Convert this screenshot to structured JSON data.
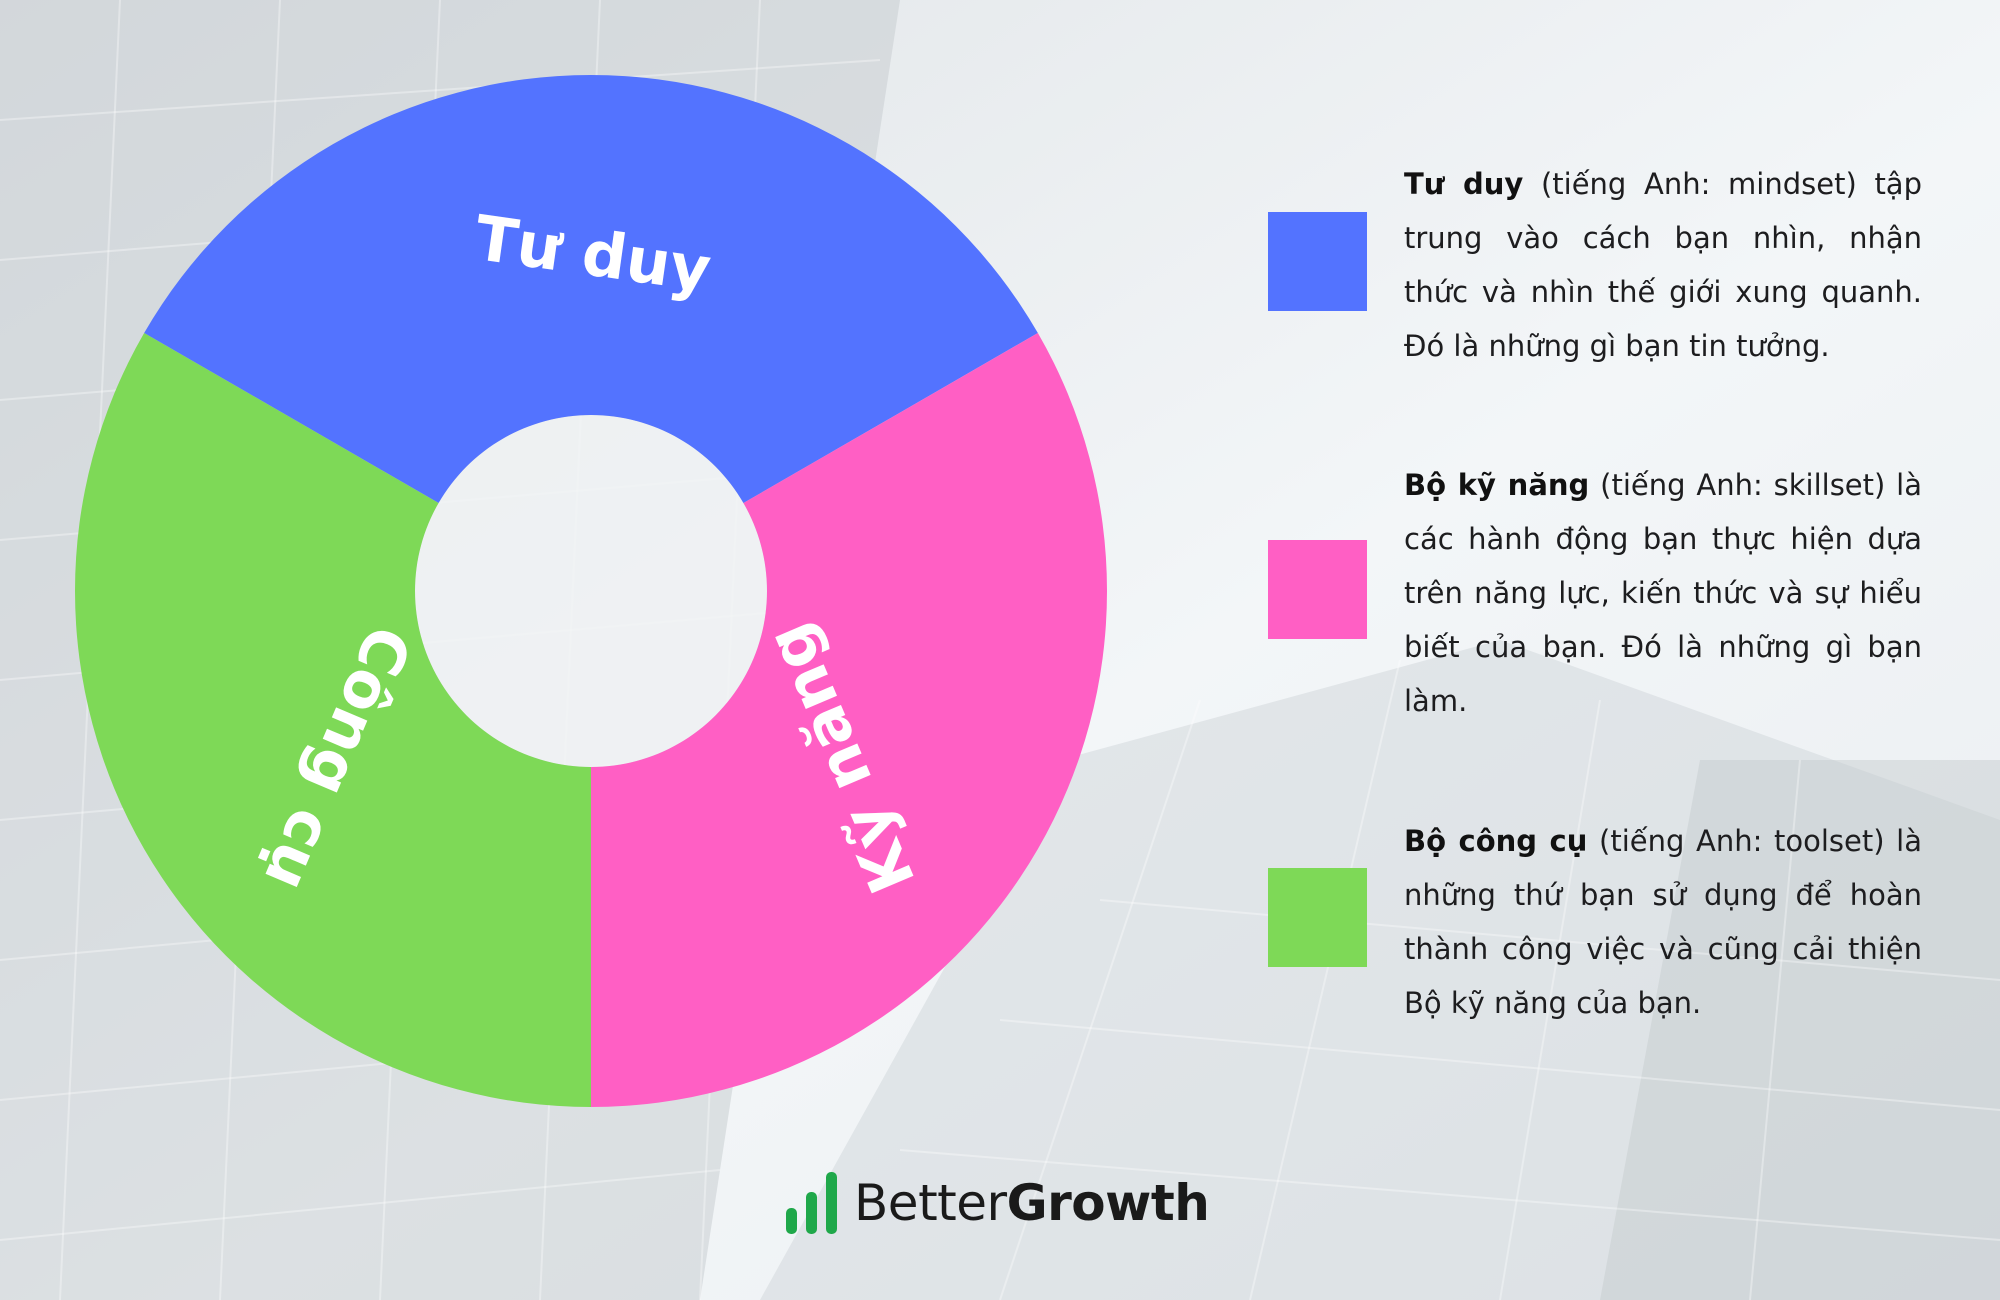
{
  "colors": {
    "mindset": "#5373ff",
    "skillset": "#ff5fc4",
    "toolset": "#7ed957",
    "brand_icon": "#1fa84a"
  },
  "diagram": {
    "segments": [
      {
        "key": "mindset",
        "label": "Tư duy"
      },
      {
        "key": "skillset",
        "label": "Kỹ năng"
      },
      {
        "key": "toolset",
        "label": "Công cụ"
      }
    ]
  },
  "legend": [
    {
      "key": "mindset",
      "term": "Tư duy",
      "description": " (tiếng Anh: mindset) tập trung vào cách bạn nhìn, nhận thức và nhìn thế giới xung quanh. Đó là những gì bạn tin tưởng."
    },
    {
      "key": "skillset",
      "term": "Bộ kỹ năng",
      "description": " (tiếng Anh: skillset) là các hành động bạn thực hiện dựa trên năng lực, kiến thức và sự hiểu biết của bạn. Đó là những gì bạn làm."
    },
    {
      "key": "toolset",
      "term": "Bộ công cụ",
      "description": " (tiếng Anh: toolset) là những thứ bạn sử dụng để hoàn thành công việc và cũng cải thiện Bộ kỹ năng của bạn."
    }
  ],
  "brand": {
    "icon": "bar-chart-icon",
    "name_regular": "Better",
    "name_bold": "Growth"
  }
}
